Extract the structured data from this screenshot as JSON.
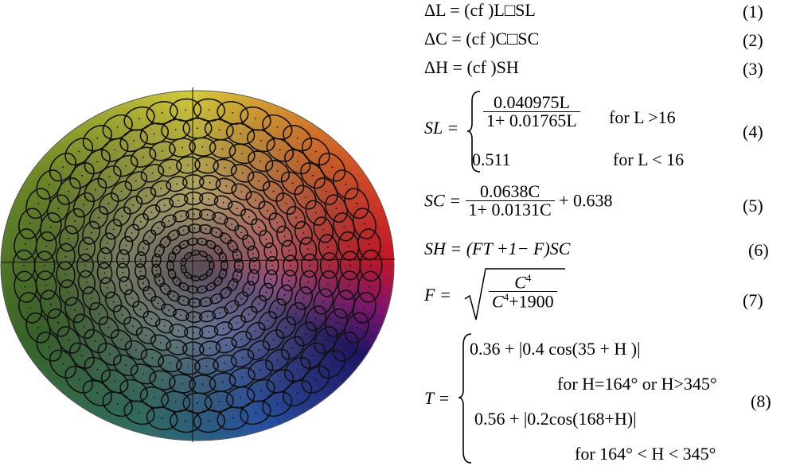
{
  "figure": {
    "description_icon": "color-ellipse-wheel-icon"
  },
  "equations": [
    {
      "id": "eq1",
      "text": "ΔL = (cf )L□SL",
      "number": "(1)"
    },
    {
      "id": "eq2",
      "text": "ΔC = (cf )C□SC",
      "number": "(2)"
    },
    {
      "id": "eq3",
      "text": "ΔH = (cf )SH",
      "number": "(3)"
    }
  ],
  "eq4": {
    "lhs": "SL =",
    "case1_num": "0.040975L",
    "case1_den": "1+ 0.01765L",
    "case1_cond": "for L >16",
    "case2_val": "0.511",
    "case2_cond": "for L < 16",
    "number": "(4)"
  },
  "eq5": {
    "lhs": "SC =",
    "num": "0.0638C",
    "den": "1+ 0.0131C",
    "tail": "+ 0.638",
    "number": "(5)"
  },
  "eq6": {
    "text": "SH = (FT +1− F)SC",
    "number": "(6)"
  },
  "eq7": {
    "lhs": "F =",
    "num_base": "C",
    "num_exp": "4",
    "den_base": "C",
    "den_exp": "4",
    "den_tail": "+1900",
    "number": "(7)"
  },
  "eq8": {
    "lhs": "T =",
    "line1": "0.36 + |0.4 cos(35 + H )|",
    "line2": "for H=164° or H>345°",
    "line3": "0.56 + |0.2cos(168+H)|",
    "line4": "for 164° < H < 345°",
    "number": "(8)"
  }
}
